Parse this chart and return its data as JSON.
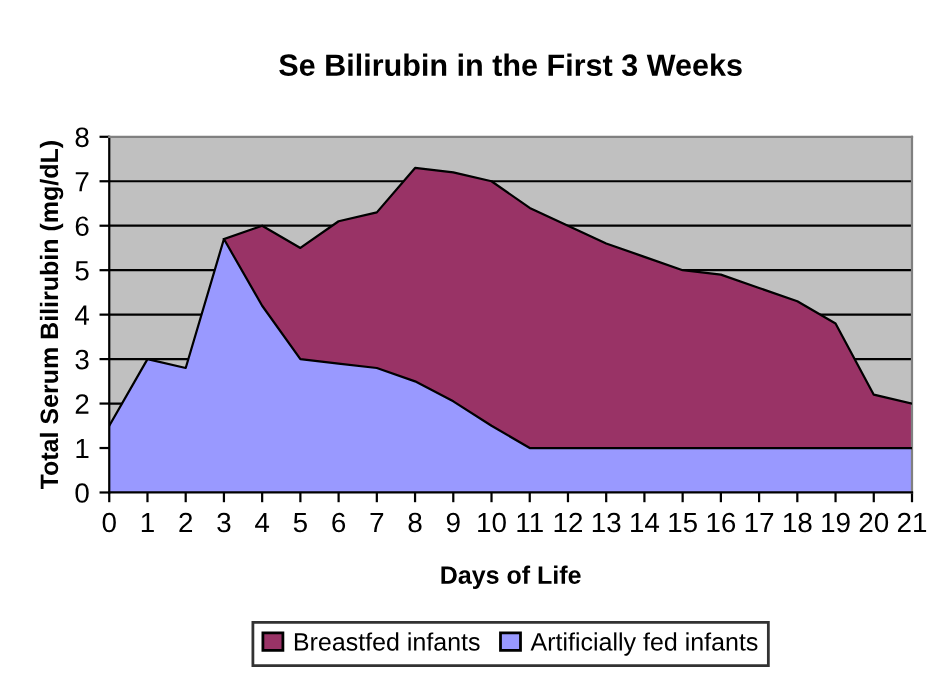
{
  "chart_data": {
    "type": "area",
    "title": "Se Bilirubin in the First 3 Weeks",
    "xlabel": "Days of Life",
    "ylabel": "Total Serum Bilirubin (mg/dL)",
    "categories": [
      "0",
      "1",
      "2",
      "3",
      "4",
      "5",
      "6",
      "7",
      "8",
      "9",
      "10",
      "11",
      "12",
      "13",
      "14",
      "15",
      "16",
      "17",
      "18",
      "19",
      "20",
      "21"
    ],
    "series": [
      {
        "name": "Breastfed infants",
        "color": "#993366",
        "values": [
          null,
          null,
          null,
          5.7,
          6.0,
          5.5,
          6.1,
          6.3,
          7.3,
          7.2,
          7.0,
          6.4,
          6.0,
          5.6,
          5.3,
          5.0,
          4.9,
          4.6,
          4.3,
          3.8,
          2.2,
          2.0
        ]
      },
      {
        "name": "Artificially fed infants",
        "color": "#9999ff",
        "values": [
          1.5,
          3.0,
          2.8,
          5.7,
          4.2,
          3.0,
          2.9,
          2.8,
          2.5,
          2.05,
          1.5,
          1.0,
          1.0,
          1.0,
          1.0,
          1.0,
          1.0,
          1.0,
          1.0,
          1.0,
          1.0,
          1.0
        ]
      }
    ],
    "ylim": [
      0,
      8
    ],
    "yticks": [
      0,
      1,
      2,
      3,
      4,
      5,
      6,
      7,
      8
    ],
    "grid": "y",
    "legend": "bottom"
  }
}
